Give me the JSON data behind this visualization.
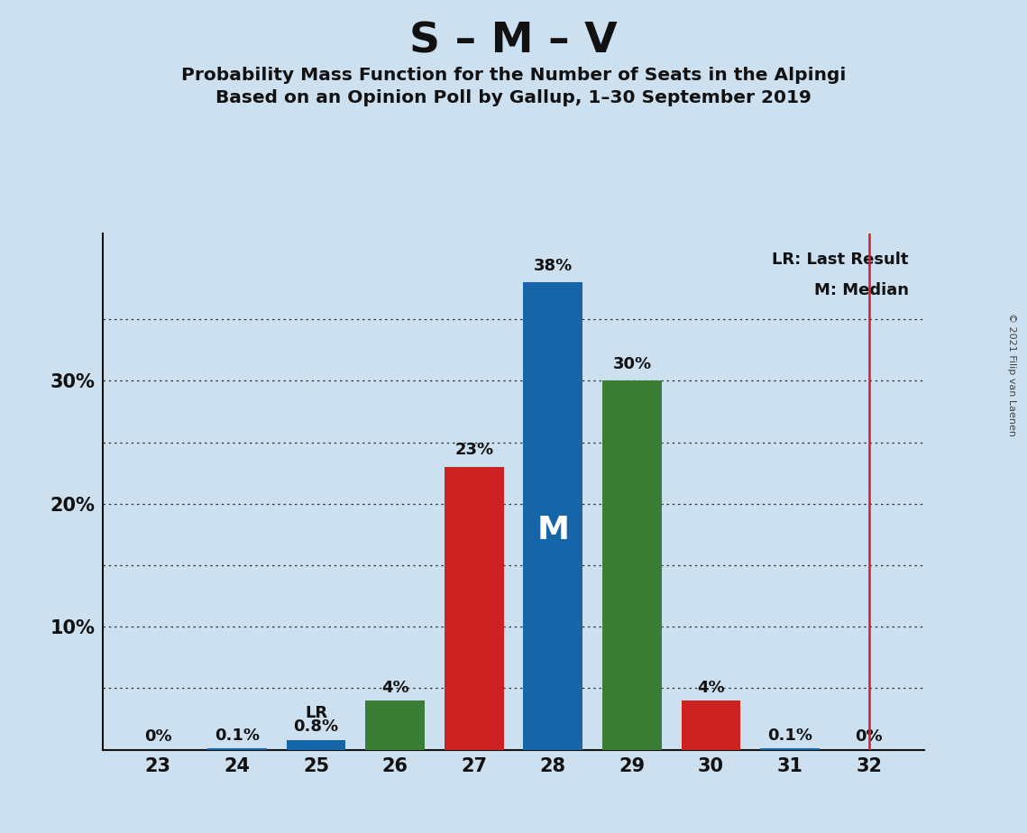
{
  "title": "S – M – V",
  "subtitle1": "Probability Mass Function for the Number of Seats in the Alpingi",
  "subtitle2": "Based on an Opinion Poll by Gallup, 1–30 September 2019",
  "copyright": "© 2021 Filip van Laenen",
  "seats": [
    23,
    24,
    25,
    26,
    27,
    28,
    29,
    30,
    31,
    32
  ],
  "values": [
    0.0,
    0.1,
    0.8,
    4.0,
    23.0,
    38.0,
    30.0,
    4.0,
    0.1,
    0.0
  ],
  "colors": [
    "#1565a8",
    "#1565a8",
    "#1565a8",
    "#3a7d35",
    "#cc2222",
    "#1565a8",
    "#3a7d35",
    "#cc2222",
    "#1565a8",
    "#1565a8"
  ],
  "labels": [
    "0%",
    "0.1%",
    "0.8%",
    "4%",
    "23%",
    "38%",
    "30%",
    "4%",
    "0.1%",
    "0%"
  ],
  "median_seat": 28,
  "median_label": "M",
  "lr_seat": 25,
  "lr_label": "LR",
  "lr_line_seat": 32,
  "legend_lr": "LR: Last Result",
  "legend_m": "M: Median",
  "background_color": "#cce0f0",
  "bar_width": 0.75,
  "ylim": [
    0,
    42
  ],
  "dotted_lines": [
    5,
    10,
    15,
    20,
    25,
    30,
    35
  ],
  "ytick_positions": [
    10,
    20,
    30
  ],
  "ytick_labels": [
    "10%",
    "20%",
    "30%"
  ]
}
